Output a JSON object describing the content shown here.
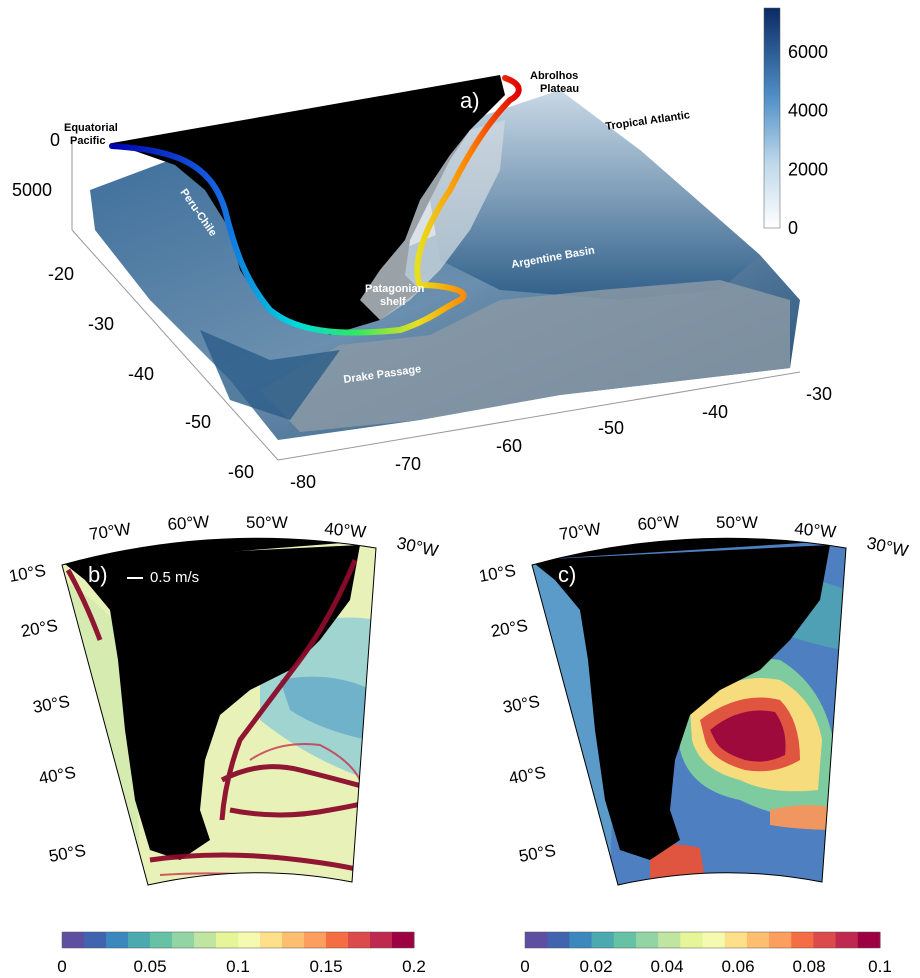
{
  "panel_a": {
    "label": "a)",
    "places": {
      "equatorial_pacific_1": "Equatorial",
      "equatorial_pacific_2": "Pacific",
      "abrolhos_1": "Abrolhos",
      "abrolhos_2": "Plateau",
      "tropical_atlantic": "Tropical Atlantic",
      "peru_chile": "Peru-Chile",
      "argentine_basin": "Argentine Basin",
      "patagonian_1": "Patagonian",
      "patagonian_2": "shelf",
      "drake_passage": "Drake Passage"
    },
    "depth_ticks": [
      "0",
      "5000"
    ],
    "lat_ticks": [
      "-20",
      "-30",
      "-40",
      "-50",
      "-60"
    ],
    "lon_ticks": [
      "-80",
      "-70",
      "-60",
      "-50",
      "-40",
      "-30"
    ],
    "colorbar": {
      "ticks": [
        "6000",
        "4000",
        "2000",
        "0"
      ],
      "range": [
        0,
        7500
      ]
    }
  },
  "panel_b": {
    "label": "b)",
    "scale_label": "0.5 m/s",
    "lon_labels": [
      "70°W",
      "60°W",
      "50°W",
      "40°W",
      "30°W"
    ],
    "lat_labels": [
      "10°S",
      "20°S",
      "30°S",
      "40°S",
      "50°S"
    ],
    "colorbar": {
      "ticks": [
        "0",
        "0.05",
        "0.1",
        "0.15",
        "0.2"
      ],
      "range": [
        0,
        0.2
      ]
    }
  },
  "panel_c": {
    "label": "c)",
    "lon_labels": [
      "70°W",
      "60°W",
      "50°W",
      "40°W",
      "30°W"
    ],
    "lat_labels": [
      "10°S",
      "20°S",
      "30°S",
      "40°S",
      "50°S"
    ],
    "colorbar": {
      "ticks": [
        "0",
        "0.02",
        "0.04",
        "0.06",
        "0.08",
        "0.1"
      ],
      "range": [
        0,
        0.1
      ]
    }
  },
  "colors": {
    "background": "#ffffff",
    "land": "#000000",
    "bathy_low": "#f4f8fb",
    "bathy_high": "#0b2a63"
  }
}
